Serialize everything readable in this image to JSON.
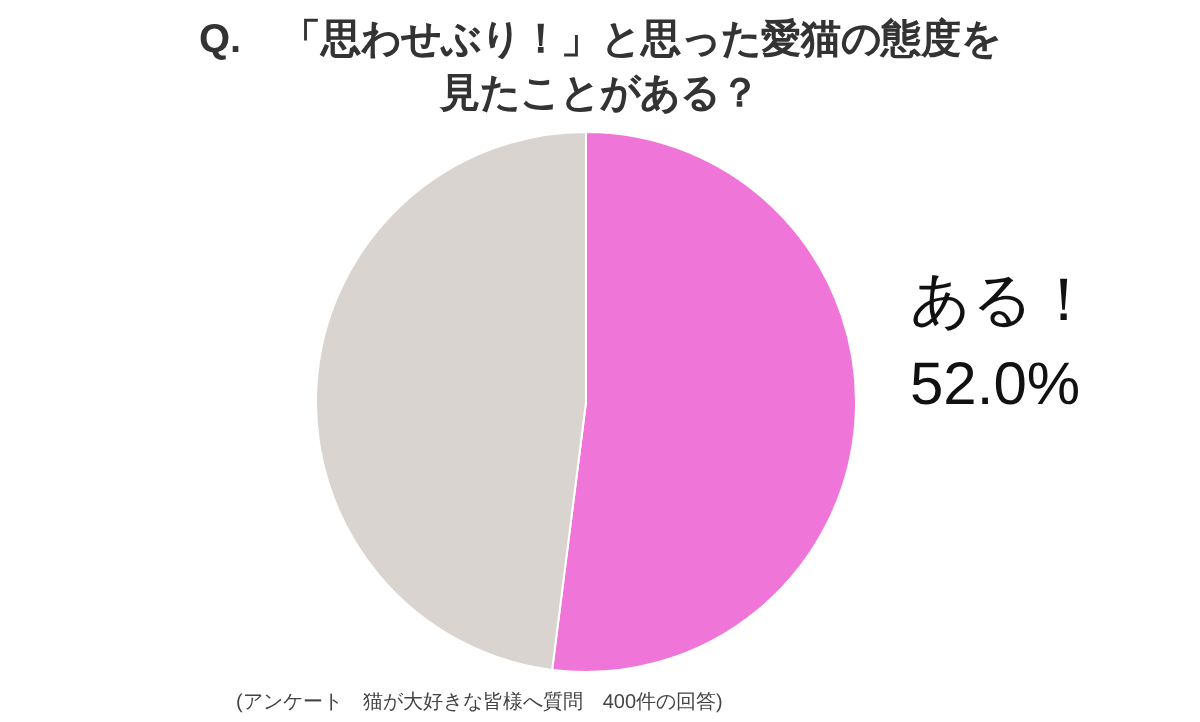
{
  "chart_data": {
    "type": "pie",
    "title": "Q.　「思わせぶり！」と思った愛猫の態度を",
    "subtitle": "見たことがある？",
    "categories": [
      "ある！",
      null
    ],
    "values": [
      52.0,
      48.0
    ],
    "colors": [
      "#f075d8",
      "#d9d4cf"
    ],
    "value_labels": [
      "52.0%",
      null
    ],
    "annotations": [
      "(アンケート　猫が大好きな皆様へ質問　400件の回答)"
    ]
  }
}
